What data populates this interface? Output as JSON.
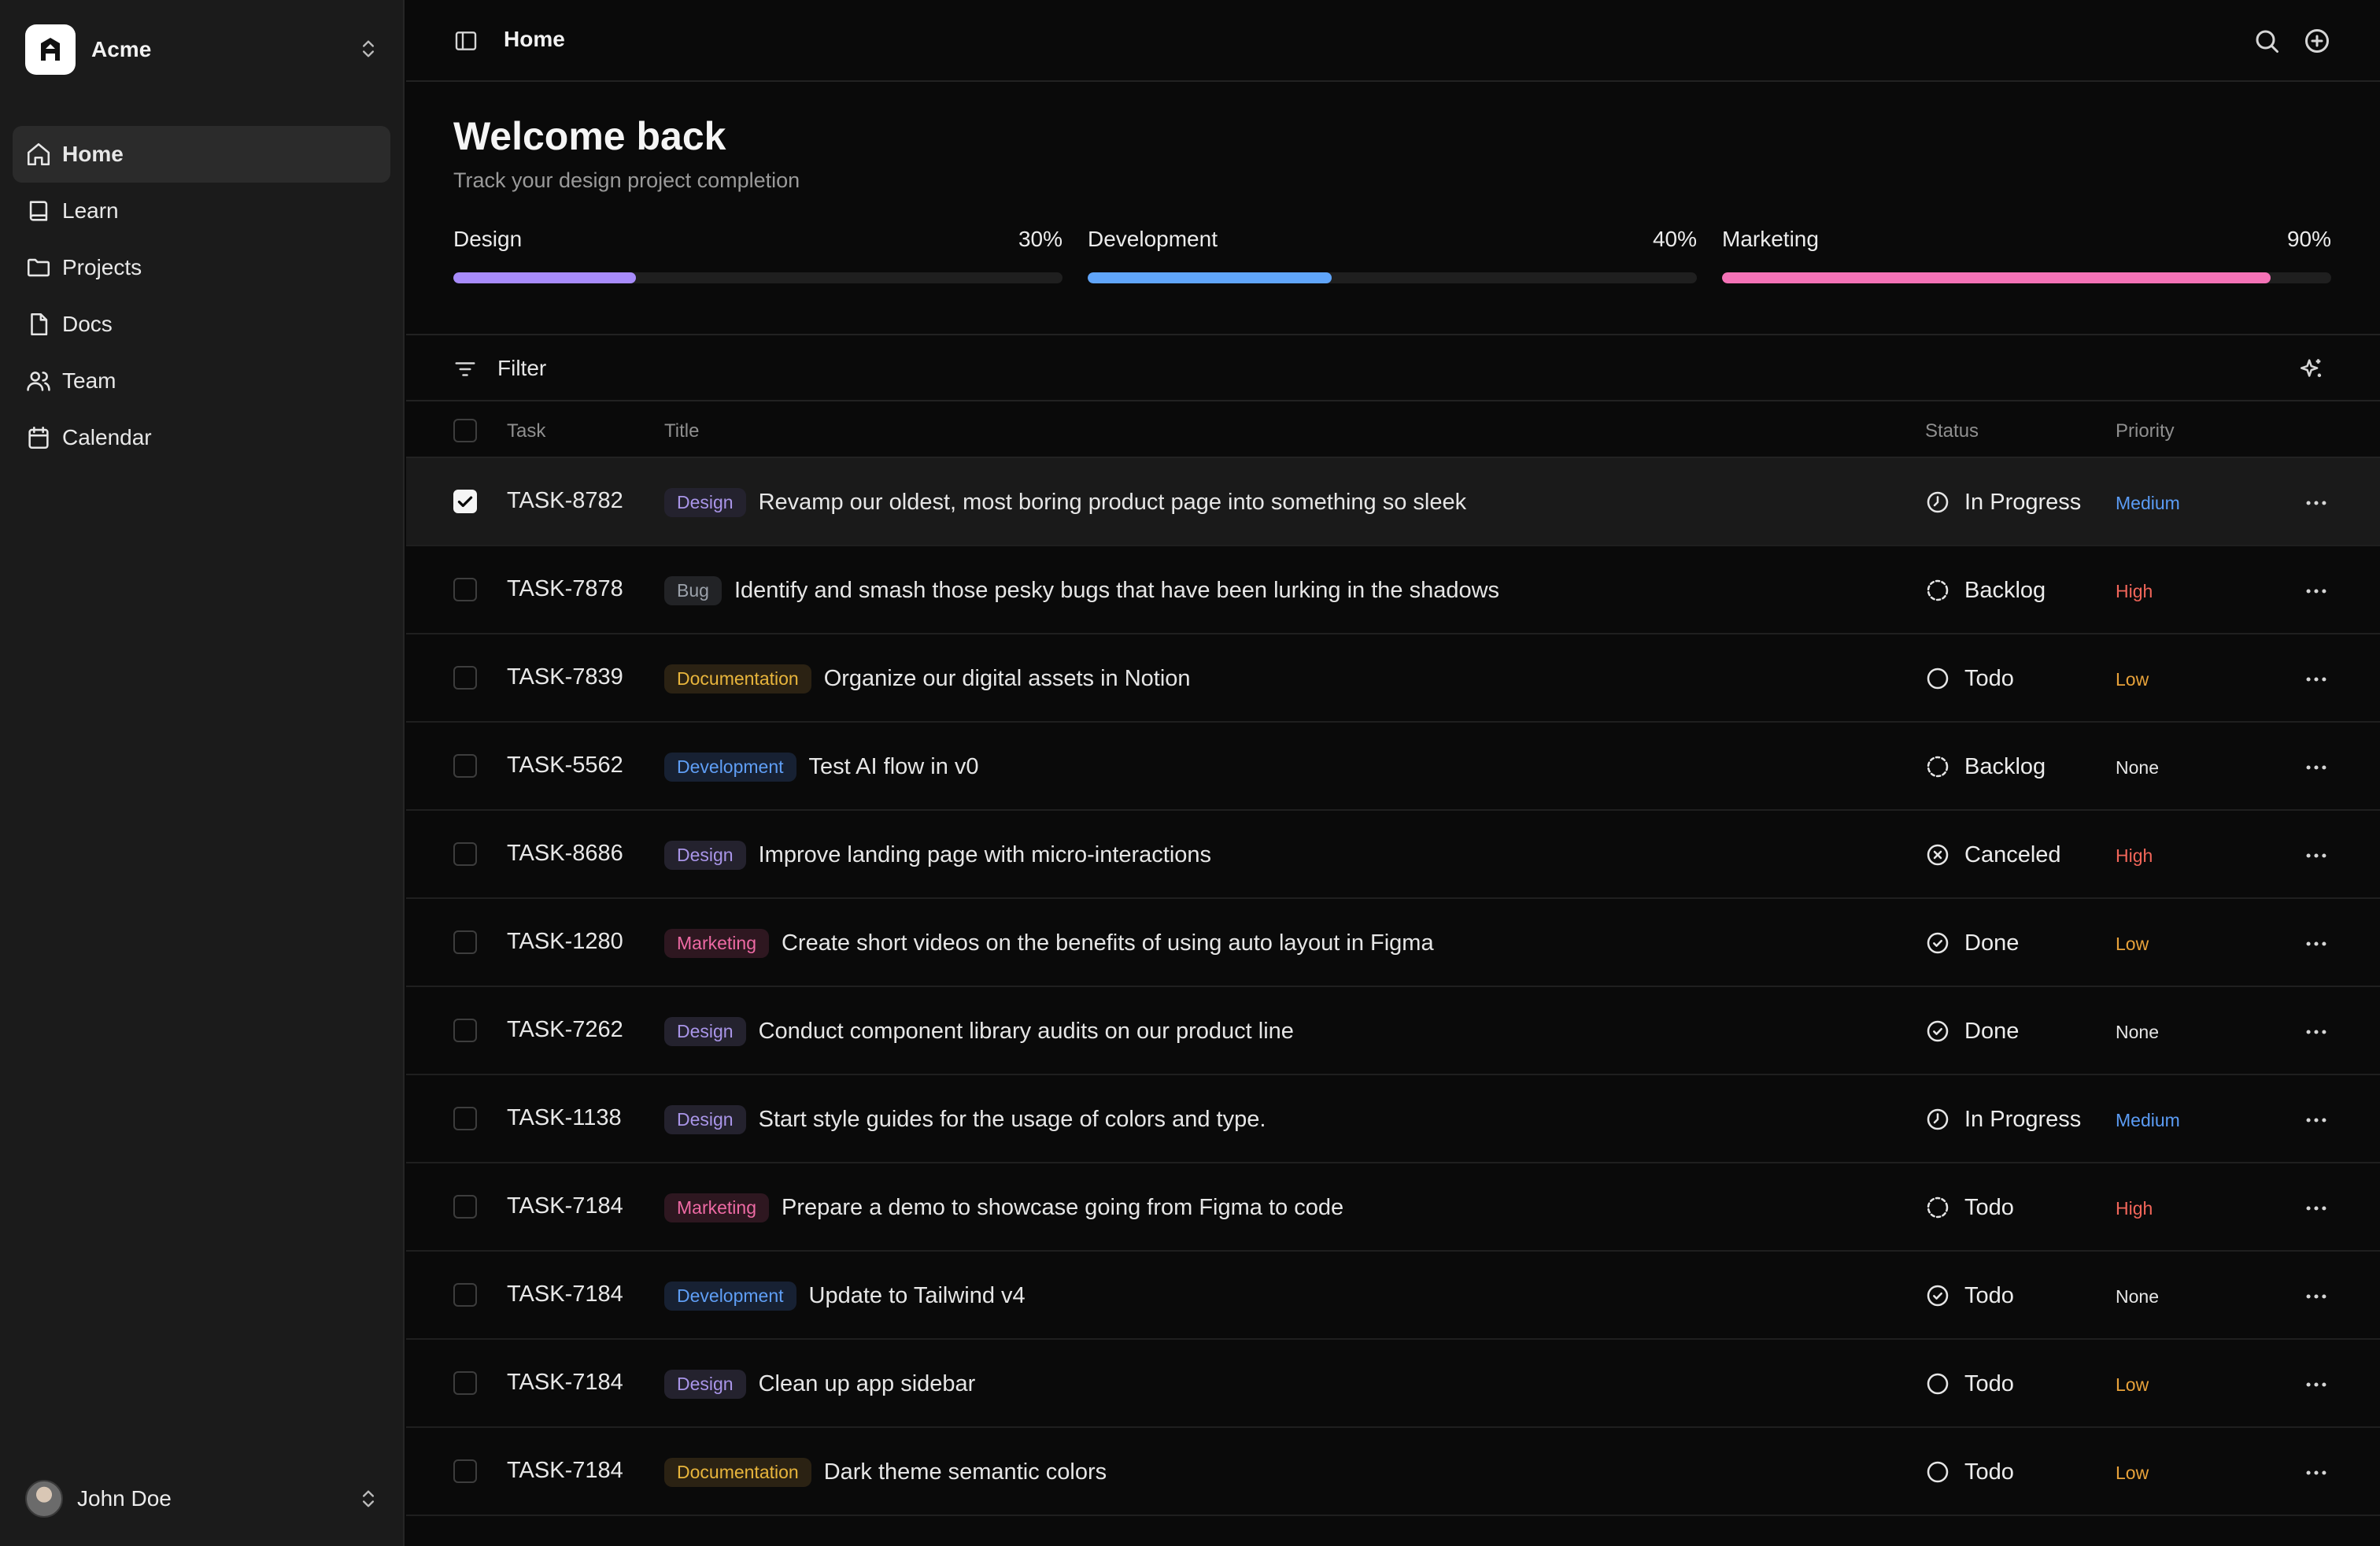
{
  "workspace": {
    "name": "Acme"
  },
  "nav": [
    {
      "label": "Home",
      "icon": "home-icon",
      "active": true
    },
    {
      "label": "Learn",
      "icon": "book-icon",
      "active": false
    },
    {
      "label": "Projects",
      "icon": "folder-icon",
      "active": false
    },
    {
      "label": "Docs",
      "icon": "file-icon",
      "active": false
    },
    {
      "label": "Team",
      "icon": "users-icon",
      "active": false
    },
    {
      "label": "Calendar",
      "icon": "calendar-icon",
      "active": false
    }
  ],
  "user": {
    "name": "John Doe"
  },
  "header": {
    "breadcrumb": "Home"
  },
  "hero": {
    "title": "Welcome back",
    "subtitle": "Track your design project completion"
  },
  "progress": [
    {
      "label": "Design",
      "value_text": "30%",
      "fraction": 0.3,
      "color": "#a78bfa"
    },
    {
      "label": "Development",
      "value_text": "40%",
      "fraction": 0.4,
      "color": "#60a5fa"
    },
    {
      "label": "Marketing",
      "value_text": "90%",
      "fraction": 0.9,
      "color": "#f472b6"
    }
  ],
  "filter": {
    "label": "Filter"
  },
  "table": {
    "headers": {
      "task": "Task",
      "title": "Title",
      "status": "Status",
      "priority": "Priority"
    },
    "rows": [
      {
        "id": "TASK-8782",
        "tag": "Design",
        "title": "Revamp our oldest, most boring product page into something so sleek",
        "status": "In Progress",
        "status_icon": "clock-icon",
        "priority": "Medium",
        "checked": true
      },
      {
        "id": "TASK-7878",
        "tag": "Bug",
        "title": "Identify and smash those pesky bugs that have been lurking in the shadows",
        "status": "Backlog",
        "status_icon": "dashed-circle-icon",
        "priority": "High",
        "checked": false
      },
      {
        "id": "TASK-7839",
        "tag": "Documentation",
        "title": "Organize our digital assets in Notion",
        "status": "Todo",
        "status_icon": "circle-icon",
        "priority": "Low",
        "checked": false
      },
      {
        "id": "TASK-5562",
        "tag": "Development",
        "title": "Test AI flow in v0",
        "status": "Backlog",
        "status_icon": "dashed-circle-icon",
        "priority": "None",
        "checked": false
      },
      {
        "id": "TASK-8686",
        "tag": "Design",
        "title": "Improve landing page with micro-interactions",
        "status": "Canceled",
        "status_icon": "x-circle-icon",
        "priority": "High",
        "checked": false
      },
      {
        "id": "TASK-1280",
        "tag": "Marketing",
        "title": "Create short videos on the benefits of using auto layout in Figma",
        "status": "Done",
        "status_icon": "check-circle-icon",
        "priority": "Low",
        "checked": false
      },
      {
        "id": "TASK-7262",
        "tag": "Design",
        "title": "Conduct component library audits on our product line",
        "status": "Done",
        "status_icon": "check-circle-icon",
        "priority": "None",
        "checked": false
      },
      {
        "id": "TASK-1138",
        "tag": "Design",
        "title": "Start style guides for the usage of colors and type.",
        "status": "In Progress",
        "status_icon": "clock-icon",
        "priority": "Medium",
        "checked": false
      },
      {
        "id": "TASK-7184",
        "tag": "Marketing",
        "title": "Prepare a demo to showcase going from Figma to code",
        "status": "Todo",
        "status_icon": "dashed-circle-icon",
        "priority": "High",
        "checked": false
      },
      {
        "id": "TASK-7184",
        "tag": "Development",
        "title": "Update to Tailwind v4",
        "status": "Todo",
        "status_icon": "check-circle-icon",
        "priority": "None",
        "checked": false
      },
      {
        "id": "TASK-7184",
        "tag": "Design",
        "title": "Clean up app sidebar",
        "status": "Todo",
        "status_icon": "circle-icon",
        "priority": "Low",
        "checked": false
      },
      {
        "id": "TASK-7184",
        "tag": "Documentation",
        "title": "Dark theme semantic colors",
        "status": "Todo",
        "status_icon": "circle-icon",
        "priority": "Low",
        "checked": false
      }
    ]
  },
  "colors": {
    "priority_medium": "#5b9cf5",
    "priority_high": "#f2665a",
    "priority_low": "#e8a23a",
    "priority_none": "#e6e6e6"
  }
}
